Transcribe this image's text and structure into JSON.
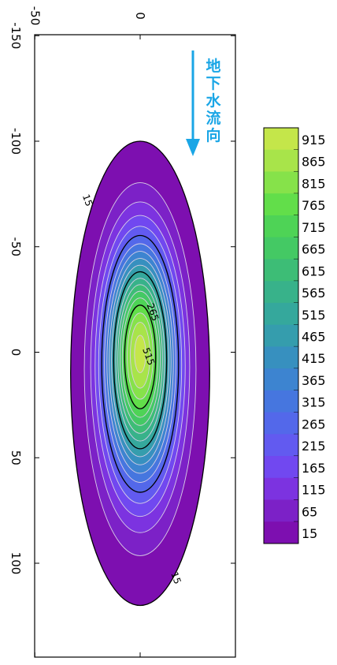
{
  "chart_data": {
    "type": "heatmap",
    "title": "",
    "xlabel": "",
    "ylabel": "",
    "x_ticks": [
      -150,
      -100,
      -50,
      0,
      50,
      100
    ],
    "y_ticks": [
      -50,
      0
    ],
    "xlim": [
      -150,
      150
    ],
    "ylim": [
      -50,
      50
    ],
    "peak_value": 940,
    "peak_x": 0,
    "peak_y": 0,
    "plume_extent_x": [
      -100,
      120
    ],
    "plume_extent_y": [
      -33,
      33
    ],
    "contour_levels": [
      15,
      65,
      115,
      165,
      215,
      265,
      315,
      365,
      415,
      465,
      515,
      565,
      615,
      665,
      715,
      765,
      815,
      865,
      915
    ],
    "black_contours": [
      15,
      265,
      515,
      765
    ],
    "contour_labels": [
      {
        "text": "15",
        "x": -72,
        "y": -25
      },
      {
        "text": "15",
        "x": 107,
        "y": 17
      },
      {
        "text": "265",
        "x": -19,
        "y": 6
      },
      {
        "text": "515",
        "x": 2,
        "y": 4
      }
    ],
    "legend": {
      "position": "right",
      "labels": [
        "915",
        "865",
        "815",
        "765",
        "715",
        "665",
        "615",
        "565",
        "515",
        "465",
        "415",
        "365",
        "315",
        "265",
        "215",
        "165",
        "115",
        "65",
        "15"
      ],
      "colors": [
        "#c4e64a",
        "#a8e44a",
        "#86e24a",
        "#62de4a",
        "#4ed356",
        "#44c964",
        "#3dbd76",
        "#38b28a",
        "#35a89c",
        "#359dad",
        "#3790bf",
        "#3d84d0",
        "#4676df",
        "#5368ea",
        "#625af0",
        "#7148f0",
        "#7c33e0",
        "#7c21c7",
        "#7d0fb0"
      ]
    },
    "grid": false
  },
  "annotation": {
    "flow_text": [
      "地",
      "下",
      "水",
      "流",
      "向"
    ],
    "arrow_color": "#1aa6e6"
  }
}
